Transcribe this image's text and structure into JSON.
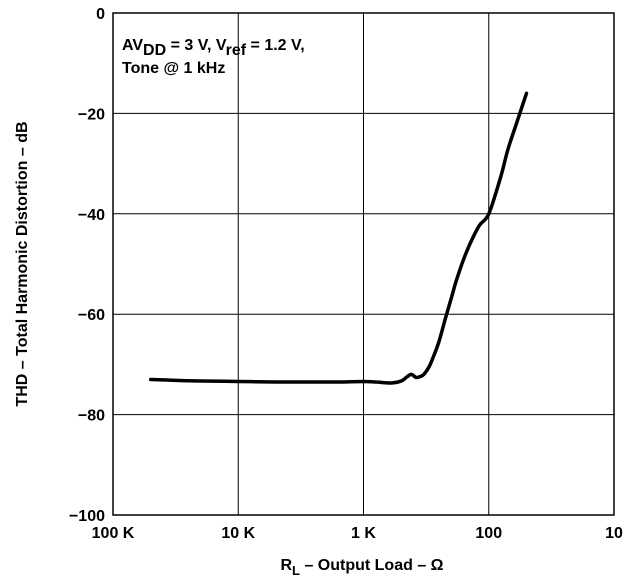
{
  "chart_data": {
    "type": "line",
    "xlabel": "R",
    "xlabel_sub": "L",
    "xlabel_rest": " – Output Load – Ω",
    "ylabel": "THD – Total Harmonic Distortion – dB",
    "x_scale": "log",
    "x_reversed": true,
    "xlim": [
      100000,
      10
    ],
    "ylim": [
      -100,
      0
    ],
    "x_ticks": [
      100000,
      10000,
      1000,
      100,
      10
    ],
    "x_tick_labels": [
      "100 K",
      "10 K",
      "1 K",
      "100",
      "10"
    ],
    "y_ticks": [
      0,
      -20,
      -40,
      -60,
      -80,
      -100
    ],
    "y_tick_labels": [
      "0",
      "−20",
      "−40",
      "−60",
      "−80",
      "−100"
    ],
    "grid": true,
    "annotation": {
      "line1": {
        "a": "AV",
        "a_sub": "DD",
        "b": " = 3 V, V",
        "b_sub": "ref",
        "c": " = 1.2 V,"
      },
      "line2": "Tone @ 1 kHz"
    },
    "series": [
      {
        "x": [
          50000,
          30000,
          20000,
          10000,
          5000,
          3000,
          2000,
          1500,
          1000,
          800,
          600,
          500,
          450,
          420,
          400,
          380,
          350,
          330,
          300,
          280,
          250,
          220,
          200,
          180,
          150,
          120,
          100,
          80,
          70,
          60,
          50
        ],
        "y": [
          -73,
          -73.2,
          -73.3,
          -73.4,
          -73.5,
          -73.5,
          -73.5,
          -73.5,
          -73.4,
          -73.5,
          -73.7,
          -73.3,
          -72.5,
          -72.0,
          -72.2,
          -72.6,
          -72.4,
          -72.0,
          -70.5,
          -68.8,
          -65.5,
          -60.5,
          -57.0,
          -53.0,
          -47.5,
          -42.5,
          -40.0,
          -32.5,
          -27.0,
          -22.0,
          -16.0
        ]
      }
    ]
  }
}
